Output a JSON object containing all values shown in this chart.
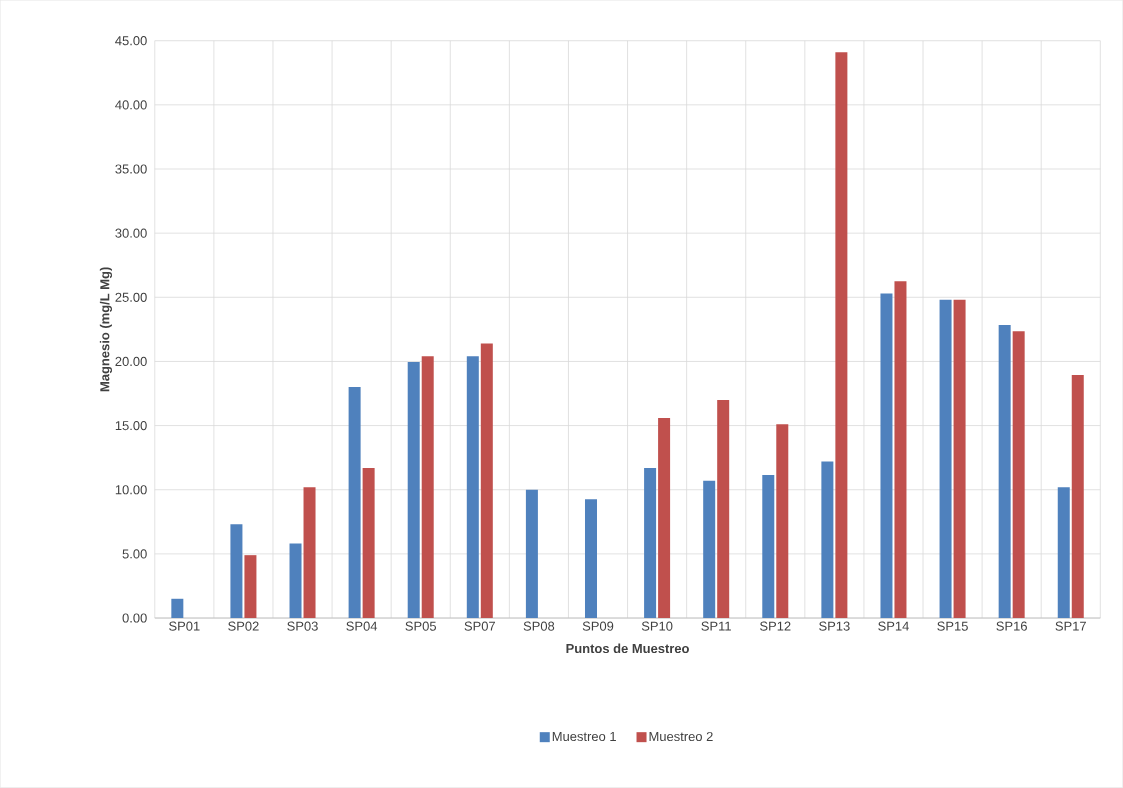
{
  "chart_data": {
    "type": "bar",
    "xlabel": "Puntos de Muestreo",
    "ylabel": "Magnesio (mg/L Mg)",
    "categories": [
      "SP01",
      "SP02",
      "SP03",
      "SP04",
      "SP05",
      "SP07",
      "SP08",
      "SP09",
      "SP10",
      "SP11",
      "SP12",
      "SP13",
      "SP14",
      "SP15",
      "SP16",
      "SP17"
    ],
    "series": [
      {
        "name": "Muestreo 1",
        "color": "#4f81bd",
        "values": [
          1.5,
          7.3,
          5.8,
          18.0,
          19.95,
          20.4,
          10.0,
          9.25,
          11.7,
          10.7,
          11.15,
          12.2,
          25.3,
          24.8,
          22.85,
          10.2
        ]
      },
      {
        "name": "Muestreo 2",
        "color": "#c0504d",
        "values": [
          null,
          4.9,
          10.2,
          11.7,
          20.4,
          21.4,
          null,
          null,
          15.6,
          17.0,
          15.1,
          44.1,
          26.25,
          24.8,
          22.35,
          18.95
        ]
      }
    ],
    "ylim": [
      0,
      45
    ],
    "yticks": [
      {
        "value": 0,
        "label": "0.00"
      },
      {
        "value": 5,
        "label": "5.00"
      },
      {
        "value": 10,
        "label": "10.00"
      },
      {
        "value": 15,
        "label": "15.00"
      },
      {
        "value": 20,
        "label": "20.00"
      },
      {
        "value": 25,
        "label": "25.00"
      },
      {
        "value": 30,
        "label": "30.00"
      },
      {
        "value": 35,
        "label": "35.00"
      },
      {
        "value": 40,
        "label": "40.00"
      },
      {
        "value": 45,
        "label": "45.00"
      }
    ],
    "grid": true,
    "legend": "bottom"
  }
}
